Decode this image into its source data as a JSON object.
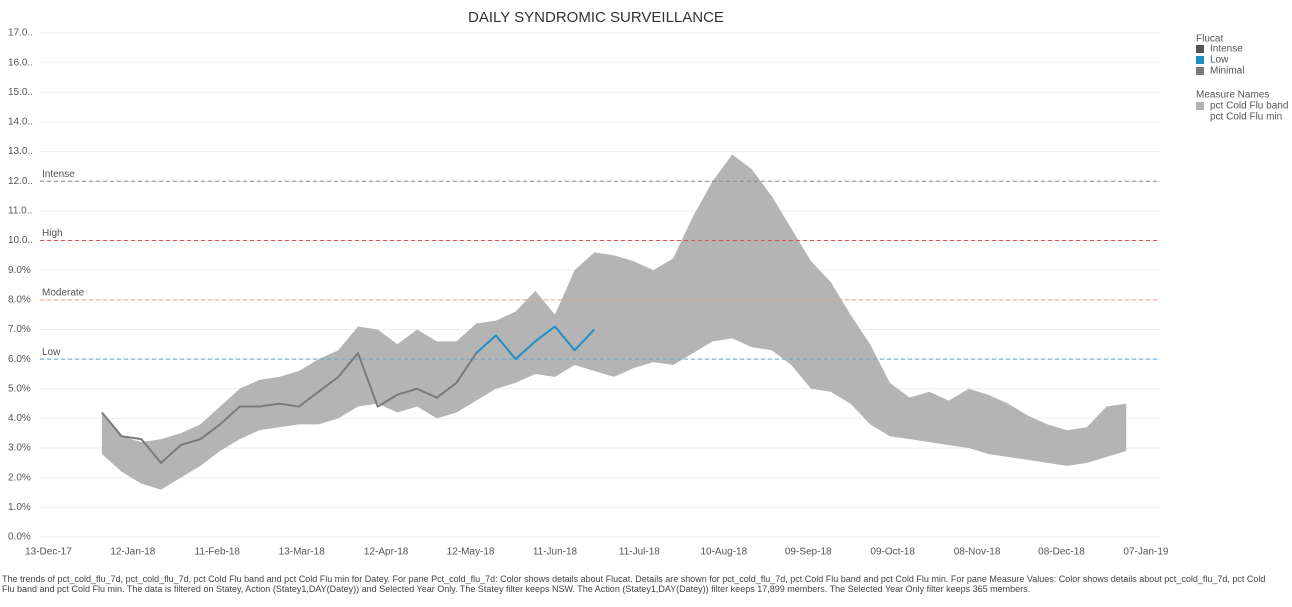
{
  "chart_data": {
    "type": "line",
    "title": "DAILY SYNDROMIC SURVEILLANCE",
    "x": [
      "2018-01-01",
      "2018-01-08",
      "2018-01-15",
      "2018-01-22",
      "2018-01-29",
      "2018-02-05",
      "2018-02-12",
      "2018-02-19",
      "2018-02-26",
      "2018-03-05",
      "2018-03-12",
      "2018-03-19",
      "2018-03-26",
      "2018-04-02",
      "2018-04-09",
      "2018-04-16",
      "2018-04-23",
      "2018-04-30",
      "2018-05-07",
      "2018-05-14",
      "2018-05-21",
      "2018-05-28",
      "2018-06-04",
      "2018-06-11",
      "2018-06-18",
      "2018-06-25",
      "2018-07-02",
      "2018-07-09",
      "2018-07-16",
      "2018-07-23",
      "2018-07-30",
      "2018-08-06",
      "2018-08-13",
      "2018-08-20",
      "2018-08-27",
      "2018-09-03",
      "2018-09-10",
      "2018-09-17",
      "2018-09-24",
      "2018-10-01",
      "2018-10-08",
      "2018-10-15",
      "2018-10-22",
      "2018-10-29",
      "2018-11-05",
      "2018-11-12",
      "2018-11-19",
      "2018-11-26",
      "2018-12-03",
      "2018-12-10",
      "2018-12-17",
      "2018-12-24",
      "2018-12-31"
    ],
    "band_min": [
      2.8,
      2.2,
      1.8,
      1.6,
      2.0,
      2.4,
      2.9,
      3.3,
      3.6,
      3.7,
      3.8,
      3.8,
      4.0,
      4.4,
      4.5,
      4.2,
      4.4,
      4.0,
      4.2,
      4.6,
      5.0,
      5.2,
      5.5,
      5.4,
      5.8,
      5.6,
      5.4,
      5.7,
      5.9,
      5.8,
      6.2,
      6.6,
      6.7,
      6.4,
      6.3,
      5.8,
      5.0,
      4.9,
      4.5,
      3.8,
      3.4,
      3.3,
      3.2,
      3.1,
      3.0,
      2.8,
      2.7,
      2.6,
      2.5,
      2.4,
      2.5,
      2.7,
      2.9
    ],
    "band_width": [
      1.4,
      1.2,
      1.4,
      1.7,
      1.5,
      1.4,
      1.5,
      1.7,
      1.7,
      1.7,
      1.8,
      2.2,
      2.3,
      2.7,
      2.5,
      2.3,
      2.6,
      2.6,
      2.4,
      2.6,
      2.3,
      2.4,
      2.8,
      2.1,
      3.2,
      4.0,
      4.1,
      3.6,
      3.1,
      3.6,
      4.6,
      5.4,
      6.2,
      6.0,
      5.2,
      4.6,
      4.3,
      3.7,
      3.0,
      2.7,
      1.8,
      1.4,
      1.7,
      1.5,
      2.0,
      2.0,
      1.8,
      1.5,
      1.3,
      1.2,
      1.2,
      1.7,
      1.6
    ],
    "series": [
      {
        "flucat": 2,
        "values": [
          4.2,
          3.4,
          3.3,
          2.5,
          3.1,
          3.3,
          3.8,
          4.4,
          4.4,
          4.5,
          4.4,
          4.9,
          5.4,
          6.2,
          4.4,
          4.8,
          5.0,
          4.7,
          5.2,
          6.2,
          null,
          null,
          null,
          null,
          null,
          null,
          null,
          null,
          null,
          null,
          null,
          null,
          null,
          null,
          null,
          null,
          null,
          null,
          null,
          null,
          null,
          null,
          null,
          null,
          null,
          null,
          null,
          null,
          null,
          null,
          null,
          null,
          null
        ]
      },
      {
        "flucat": 1,
        "values": [
          null,
          null,
          null,
          null,
          null,
          null,
          null,
          null,
          null,
          null,
          null,
          null,
          null,
          null,
          null,
          null,
          null,
          null,
          null,
          6.2,
          6.8,
          6.0,
          6.6,
          7.1,
          6.3,
          7.0,
          null,
          null,
          null,
          null,
          null,
          null,
          null,
          null,
          null,
          null,
          null,
          null,
          null,
          null,
          null,
          null,
          null,
          null,
          null,
          null,
          null,
          null,
          null,
          null,
          null,
          null,
          null
        ]
      }
    ],
    "flucat_legend": {
      "title": "Flucat",
      "items": [
        {
          "name": "Intense",
          "color": "#555555"
        },
        {
          "name": "Low",
          "color": "#1f8fc6"
        },
        {
          "name": "Minimal",
          "color": "#7a7a7a"
        }
      ]
    },
    "measure_legend": {
      "title": "Measure Names",
      "items": [
        {
          "name": "pct Cold Flu band",
          "color": "#b4b4b4"
        },
        {
          "name": "pct Cold Flu min"
        }
      ]
    },
    "reference_lines": [
      {
        "label": "Intense",
        "value": 12,
        "color": "#888888"
      },
      {
        "label": "High",
        "value": 10,
        "color": "#d9534f"
      },
      {
        "label": "Moderate",
        "value": 8,
        "color": "#e8a48a"
      },
      {
        "label": "Low",
        "value": 6,
        "color": "#5aa9dc"
      }
    ],
    "xlim": [
      "2017-12-10",
      "2019-01-12"
    ],
    "xticks": [
      {
        "value": "2017-12-13",
        "label": "13-Dec-17"
      },
      {
        "value": "2018-01-12",
        "label": "12-Jan-18"
      },
      {
        "value": "2018-02-11",
        "label": "11-Feb-18"
      },
      {
        "value": "2018-03-13",
        "label": "13-Mar-18"
      },
      {
        "value": "2018-04-12",
        "label": "12-Apr-18"
      },
      {
        "value": "2018-05-12",
        "label": "12-May-18"
      },
      {
        "value": "2018-06-11",
        "label": "11-Jun-18"
      },
      {
        "value": "2018-07-11",
        "label": "11-Jul-18"
      },
      {
        "value": "2018-08-10",
        "label": "10-Aug-18"
      },
      {
        "value": "2018-09-09",
        "label": "09-Sep-18"
      },
      {
        "value": "2018-10-09",
        "label": "09-Oct-18"
      },
      {
        "value": "2018-11-08",
        "label": "08-Nov-18"
      },
      {
        "value": "2018-12-08",
        "label": "08-Dec-18"
      },
      {
        "value": "2019-01-07",
        "label": "07-Jan-19"
      }
    ],
    "ylim": [
      0,
      17
    ],
    "yticks": [
      {
        "value": 0,
        "label": "0.0%"
      },
      {
        "value": 1,
        "label": "1.0%"
      },
      {
        "value": 2,
        "label": "2.0%"
      },
      {
        "value": 3,
        "label": "3.0%"
      },
      {
        "value": 4,
        "label": "4.0%"
      },
      {
        "value": 5,
        "label": "5.0%"
      },
      {
        "value": 6,
        "label": "6.0%"
      },
      {
        "value": 7,
        "label": "7.0%"
      },
      {
        "value": 8,
        "label": "8.0%"
      },
      {
        "value": 9,
        "label": "9.0%"
      },
      {
        "value": 10,
        "label": "10.0.."
      },
      {
        "value": 11,
        "label": "11.0.."
      },
      {
        "value": 12,
        "label": "12.0.."
      },
      {
        "value": 13,
        "label": "13.0.."
      },
      {
        "value": 14,
        "label": "14.0.."
      },
      {
        "value": 15,
        "label": "15.0.."
      },
      {
        "value": 16,
        "label": "16.0.."
      },
      {
        "value": 17,
        "label": "17.0.."
      }
    ],
    "grid": true,
    "caption": "The trends of pct_cold_flu_7d, pct_cold_flu_7d, pct Cold Flu band and pct Cold Flu min for Datey.  For pane Pct_cold_flu_7d:  Color shows details about Flucat.  Details are shown for pct_cold_flu_7d, pct Cold Flu band and pct Cold Flu min.  For pane Measure Values:  Color shows details about pct_cold_flu_7d, pct Cold Flu band and pct Cold Flu min. The data is filtered on Statey, Action (Statey1,DAY(Datey)) and Selected Year Only. The Statey filter keeps NSW. The Action (Statey1,DAY(Datey)) filter keeps 17,899 members. The Selected Year Only filter keeps 365 members."
  }
}
